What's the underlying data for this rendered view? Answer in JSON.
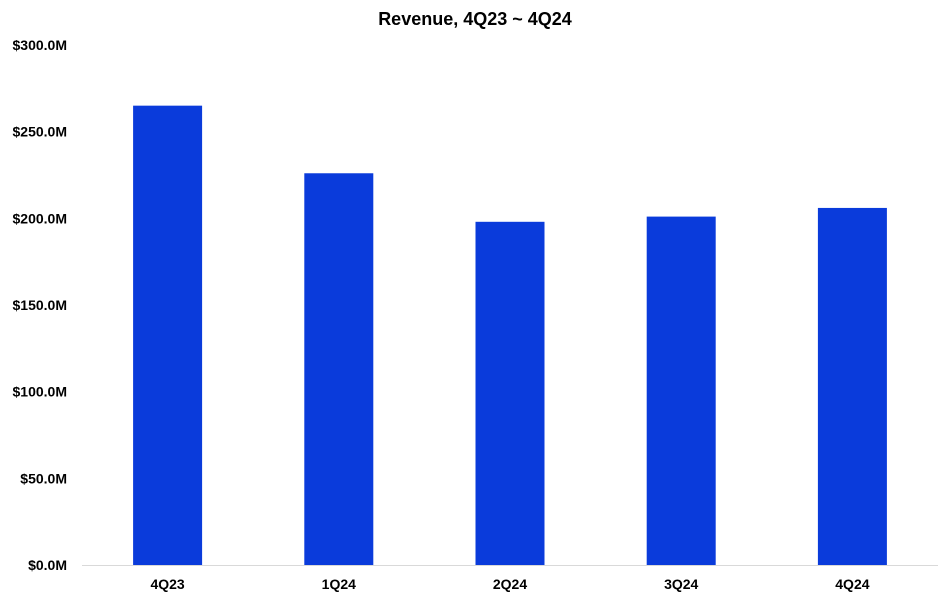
{
  "chart_data": {
    "type": "bar",
    "title": "Revenue, 4Q23 ~ 4Q24",
    "xlabel": "",
    "ylabel": "",
    "categories": [
      "4Q23",
      "1Q24",
      "2Q24",
      "3Q24",
      "4Q24"
    ],
    "series": [
      {
        "values": [
          265,
          226,
          198,
          201,
          206
        ],
        "color": "#0a3bdb"
      }
    ],
    "ylim": [
      0,
      300
    ],
    "yticks": [
      0,
      50,
      100,
      150,
      200,
      250,
      300
    ],
    "ytick_labels": [
      "$0.0M",
      "$50.0M",
      "$100.0M",
      "$150.0M",
      "$200.0M",
      "$250.0M",
      "$300.0M"
    ],
    "unit": "millions of US dollars",
    "grid": false,
    "legend": "none"
  }
}
